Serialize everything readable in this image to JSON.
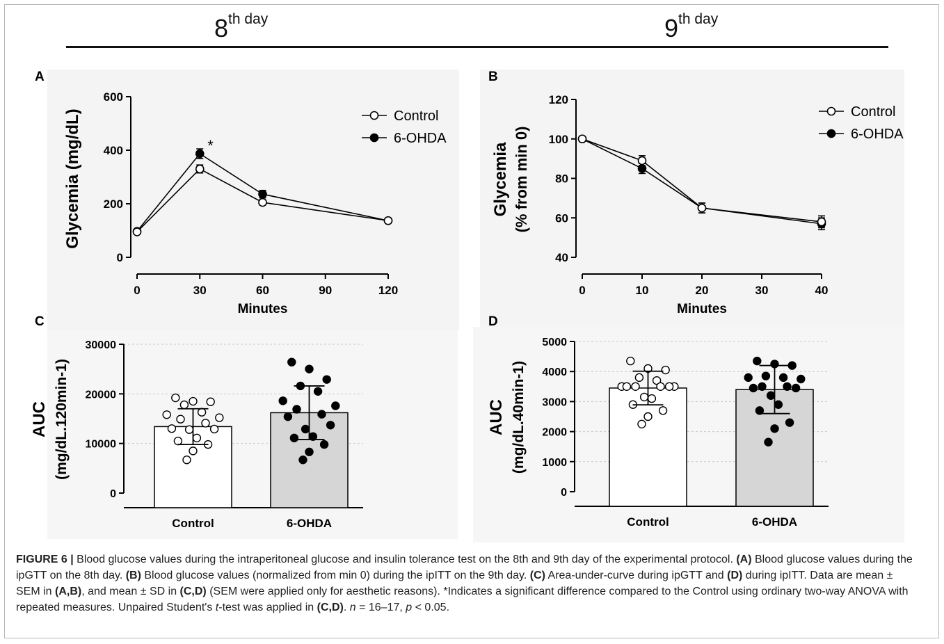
{
  "headings": {
    "left_day": "8",
    "left_suffix": "th day",
    "right_day": "9",
    "right_suffix": "th day"
  },
  "caption": {
    "figure_label": "FIGURE 6 |",
    "s1": " Blood glucose values during the intraperitoneal glucose and insulin tolerance test on the 8th and 9th day of the experimental protocol. ",
    "a": "(A)",
    "s2": " Blood glucose values during the ipGTT on the 8th day. ",
    "b": "(B)",
    "s3": " Blood glucose values (normalized from min 0) during the ipITT on the 9th day. ",
    "c": "(C)",
    "s4": " Area-under-curve during ipGTT and ",
    "d": "(D)",
    "s5": " during ipITT. Data are mean ± SEM in ",
    "ab": "(A,B)",
    "s6": ", and mean ± SD in ",
    "cd1": "(C,D)",
    "s7": " (SEM were applied only for aesthetic reasons). *Indicates a significant difference compared to the Control using ordinary two-way ANOVA with repeated measures. Unpaired Student's ",
    "t": "t",
    "s8": "-test was applied in ",
    "cd2": "(C,D)",
    "s9": ". ",
    "n": "n",
    "s10": " = 16–17, ",
    "p": "p",
    "s11": " < 0.05."
  },
  "colors": {
    "control_fill": "#ffffff",
    "ohda_fill": "#000000",
    "bar_control": "#ffffff",
    "bar_ohda": "#d6d6d6",
    "panel_bg": "#f5f5f5"
  },
  "chart_data": [
    {
      "panel": "A",
      "type": "line",
      "xlabel": "Minutes",
      "ylabel": "Glycemia (mg/dL)",
      "xlim": [
        0,
        120
      ],
      "ylim": [
        0,
        600
      ],
      "xticks": [
        0,
        30,
        60,
        90,
        120
      ],
      "yticks": [
        0,
        200,
        400,
        600
      ],
      "legend_position": "top-right",
      "x": [
        0,
        30,
        60,
        120
      ],
      "series": [
        {
          "name": "Control",
          "marker": "open-circle",
          "values": [
            95,
            330,
            205,
            137
          ],
          "err": [
            8,
            15,
            10,
            6
          ]
        },
        {
          "name": "6-OHDA",
          "marker": "filled-circle",
          "values": [
            97,
            387,
            236,
            137
          ],
          "err": [
            8,
            18,
            14,
            6
          ]
        }
      ],
      "annotations": [
        {
          "text": "*",
          "x": 30
        }
      ]
    },
    {
      "panel": "B",
      "type": "line",
      "xlabel": "Minutes",
      "ylabel_line1": "Glycemia",
      "ylabel_line2": "(% from min 0)",
      "xlim": [
        0,
        40
      ],
      "ylim": [
        40,
        120
      ],
      "xticks": [
        0,
        10,
        20,
        30,
        40
      ],
      "yticks": [
        40,
        60,
        80,
        100,
        120
      ],
      "legend_position": "top-right",
      "x": [
        0,
        10,
        20,
        40
      ],
      "series": [
        {
          "name": "Control",
          "marker": "open-circle",
          "values": [
            100,
            89,
            65,
            58
          ],
          "err": [
            0,
            2.5,
            2.5,
            3
          ]
        },
        {
          "name": "6-OHDA",
          "marker": "filled-circle",
          "values": [
            100,
            85,
            65,
            57
          ],
          "err": [
            0,
            2.5,
            2.5,
            3
          ]
        }
      ]
    },
    {
      "panel": "C",
      "type": "bar",
      "ylabel_line1": "AUC",
      "ylabel_line2": "(mg/dL.120min-1)",
      "ylim": [
        0,
        30000
      ],
      "yticks": [
        0,
        10000,
        20000,
        30000
      ],
      "categories": [
        "Control",
        "6-OHDA"
      ],
      "values": [
        13400,
        16200
      ],
      "sd": [
        3600,
        5400
      ],
      "points": [
        [
          19200,
          18500,
          18400,
          17800,
          16300,
          15800,
          15200,
          14900,
          14100,
          13000,
          12900,
          12800,
          11100,
          10500,
          9800,
          8500,
          6700
        ],
        [
          26400,
          25000,
          22900,
          21600,
          20500,
          18600,
          17600,
          16900,
          15900,
          15400,
          13700,
          12900,
          11400,
          11100,
          9800,
          8300,
          6700
        ]
      ]
    },
    {
      "panel": "D",
      "type": "bar",
      "ylabel_line1": "AUC",
      "ylabel_line2": "(mg/dL.40min-1)",
      "ylim": [
        0,
        5000
      ],
      "yticks": [
        0,
        1000,
        2000,
        3000,
        4000,
        5000
      ],
      "categories": [
        "Control",
        "6-OHDA"
      ],
      "values": [
        3450,
        3400
      ],
      "sd": [
        560,
        800
      ],
      "points": [
        [
          4350,
          4100,
          4050,
          3800,
          3700,
          3500,
          3500,
          3500,
          3500,
          3500,
          3500,
          3150,
          3100,
          2900,
          2700,
          2500,
          2250
        ],
        [
          4350,
          4250,
          4200,
          3850,
          3800,
          3800,
          3750,
          3500,
          3500,
          3450,
          3450,
          3200,
          2900,
          2700,
          2300,
          2100,
          1650
        ]
      ]
    }
  ]
}
